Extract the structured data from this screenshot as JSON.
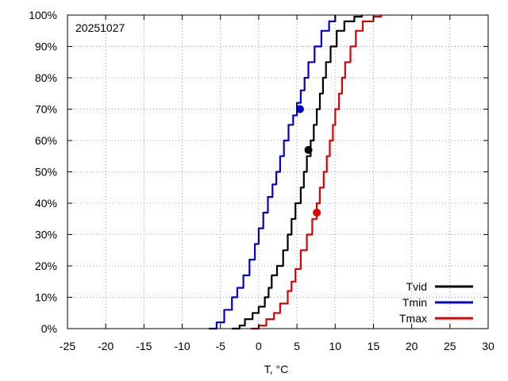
{
  "chart_data": {
    "type": "line",
    "annotation": "20251027",
    "xlabel": "T, °C",
    "ylabel": "",
    "xlim": [
      -25,
      30
    ],
    "ylim": [
      0,
      100
    ],
    "x_ticks": [
      "-25",
      "-20",
      "-15",
      "-10",
      "-5",
      "0",
      "5",
      "10",
      "15",
      "20",
      "25",
      "30"
    ],
    "y_ticks": [
      "0%",
      "10%",
      "20%",
      "30%",
      "40%",
      "50%",
      "60%",
      "70%",
      "80%",
      "90%",
      "100%"
    ],
    "grid": true,
    "legend_position": "bottom-right",
    "series": [
      {
        "name": "Tvid",
        "color": "#000000",
        "points": [
          [
            -3.5,
            0
          ],
          [
            -2.5,
            1
          ],
          [
            -1.8,
            3
          ],
          [
            -0.8,
            5
          ],
          [
            0,
            7
          ],
          [
            0.8,
            10
          ],
          [
            1.3,
            13
          ],
          [
            1.7,
            17
          ],
          [
            2.4,
            20
          ],
          [
            3.2,
            25
          ],
          [
            3.8,
            30
          ],
          [
            4.3,
            35
          ],
          [
            4.8,
            40
          ],
          [
            5.5,
            45
          ],
          [
            5.9,
            50
          ],
          [
            6.3,
            55
          ],
          [
            6.8,
            60
          ],
          [
            7.2,
            65
          ],
          [
            7.6,
            70
          ],
          [
            8.0,
            75
          ],
          [
            8.4,
            80
          ],
          [
            8.8,
            85
          ],
          [
            9.4,
            90
          ],
          [
            10.2,
            95
          ],
          [
            11.2,
            98
          ],
          [
            12.5,
            99.5
          ],
          [
            13.5,
            100
          ]
        ],
        "marker": {
          "x": 6.5,
          "y": 57
        }
      },
      {
        "name": "Tmin",
        "color": "#0000cc",
        "points": [
          [
            -6.5,
            0
          ],
          [
            -5.5,
            2
          ],
          [
            -4.5,
            6
          ],
          [
            -3.5,
            10
          ],
          [
            -2.8,
            13
          ],
          [
            -2.0,
            17
          ],
          [
            -1.2,
            22
          ],
          [
            -0.5,
            27
          ],
          [
            0,
            32
          ],
          [
            0.6,
            37
          ],
          [
            1.2,
            42
          ],
          [
            1.8,
            46
          ],
          [
            2.3,
            50
          ],
          [
            2.8,
            55
          ],
          [
            3.3,
            60
          ],
          [
            3.9,
            65
          ],
          [
            4.5,
            68
          ],
          [
            5.0,
            72
          ],
          [
            5.5,
            76
          ],
          [
            6.0,
            80
          ],
          [
            6.5,
            85
          ],
          [
            7.3,
            90
          ],
          [
            8.2,
            95
          ],
          [
            9.2,
            98
          ],
          [
            10.0,
            100
          ]
        ],
        "marker": {
          "x": 5.4,
          "y": 70
        }
      },
      {
        "name": "Tmax",
        "color": "#dd0000",
        "points": [
          [
            -1,
            0
          ],
          [
            0,
            1
          ],
          [
            1,
            3
          ],
          [
            2,
            5
          ],
          [
            2.8,
            8
          ],
          [
            3.8,
            12
          ],
          [
            4.3,
            15
          ],
          [
            4.8,
            19
          ],
          [
            5.5,
            25
          ],
          [
            6.3,
            30
          ],
          [
            7.0,
            35
          ],
          [
            7.6,
            40
          ],
          [
            8.0,
            45
          ],
          [
            8.5,
            50
          ],
          [
            8.9,
            55
          ],
          [
            9.3,
            60
          ],
          [
            9.7,
            65
          ],
          [
            10.0,
            70
          ],
          [
            10.5,
            75
          ],
          [
            10.9,
            80
          ],
          [
            11.3,
            85
          ],
          [
            12.0,
            90
          ],
          [
            12.7,
            95
          ],
          [
            13.6,
            98
          ],
          [
            15.0,
            99.5
          ],
          [
            16.0,
            100
          ]
        ],
        "marker": {
          "x": 7.6,
          "y": 37
        }
      }
    ]
  }
}
